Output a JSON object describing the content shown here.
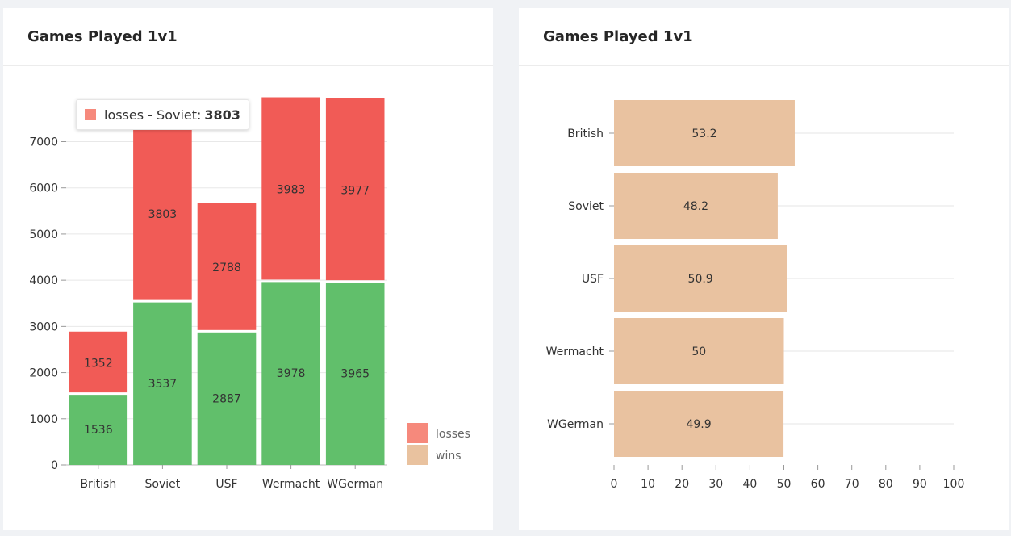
{
  "left_card": {
    "title": "Games Played 1v1",
    "tooltip": {
      "series": "losses",
      "category": "Soviet",
      "value": "3803",
      "prefix": "losses - Soviet:"
    }
  },
  "right_card": {
    "title": "Games Played 1v1"
  },
  "chart_data": [
    {
      "type": "bar",
      "stacked": true,
      "title": "Games Played 1v1",
      "categories": [
        "British",
        "Soviet",
        "USF",
        "Wermacht",
        "WGerman"
      ],
      "series": [
        {
          "name": "wins",
          "values": [
            1536,
            3537,
            2887,
            3978,
            3965
          ],
          "color": "#61bf6b"
        },
        {
          "name": "losses",
          "values": [
            1352,
            3803,
            2788,
            3983,
            3977
          ],
          "color": "#f15b56"
        }
      ],
      "legend": [
        {
          "name": "losses",
          "color": "#f6897c"
        },
        {
          "name": "wins",
          "color": "#e9c29f"
        }
      ],
      "legend_position": "bottom-right",
      "ylim": [
        0,
        7900
      ],
      "yticks": [
        0,
        1000,
        2000,
        3000,
        4000,
        5000,
        6000,
        7000
      ],
      "grid": true
    },
    {
      "type": "bar",
      "orientation": "horizontal",
      "title": "Games Played 1v1",
      "categories": [
        "British",
        "Soviet",
        "USF",
        "Wermacht",
        "WGerman"
      ],
      "values": [
        53.2,
        48.2,
        50.9,
        50,
        49.9
      ],
      "color": "#e9c2a0",
      "xlim": [
        0,
        100
      ],
      "xticks": [
        0,
        10,
        20,
        30,
        40,
        50,
        60,
        70,
        80,
        90,
        100
      ],
      "grid": true
    }
  ]
}
